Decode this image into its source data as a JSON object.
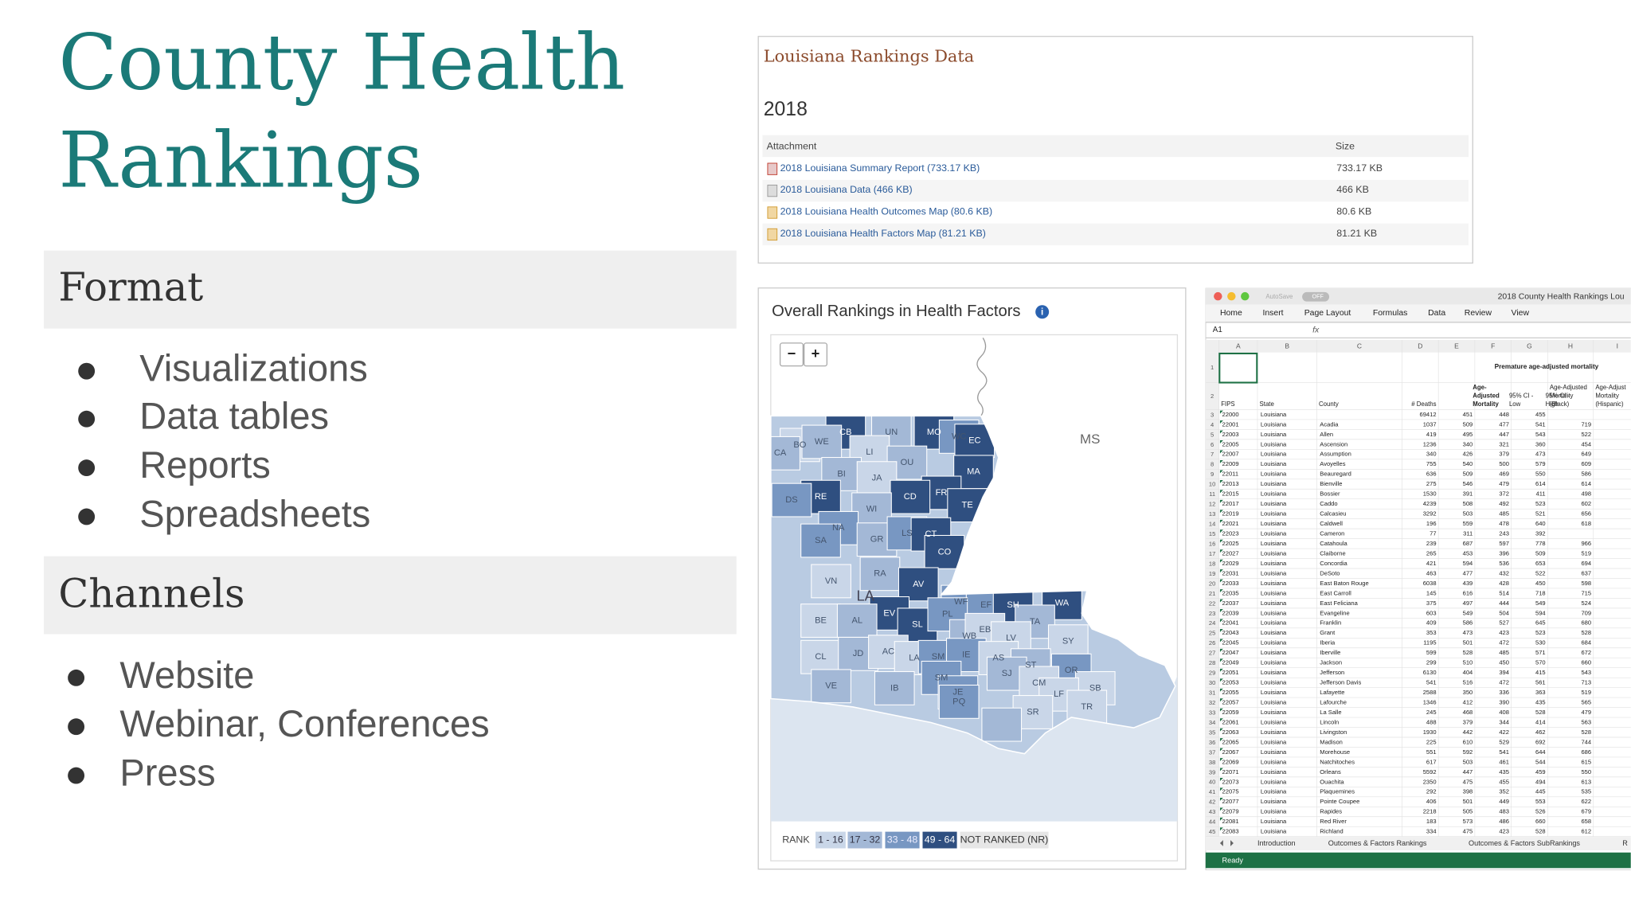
{
  "title_lines": [
    "County Health",
    "Rankings"
  ],
  "sections": [
    {
      "heading": "Format",
      "items": [
        "Visualizations",
        "Data tables",
        "Reports",
        "Spreadsheets"
      ]
    },
    {
      "heading": "Channels",
      "items": [
        "Website",
        "Webinar, Conferences",
        "Press"
      ]
    }
  ],
  "rankings_panel": {
    "heading": "Louisiana Rankings Data",
    "year": "2018",
    "columns": [
      "Attachment",
      "Size"
    ],
    "rows": [
      [
        "2018 Louisiana Summary Report (733.17 KB)",
        "733.17 KB"
      ],
      [
        "2018 Louisiana Data (466 KB)",
        "466 KB"
      ],
      [
        "2018 Louisiana Health Outcomes Map (80.6 KB)",
        "80.6 KB"
      ],
      [
        "2018 Louisiana Health Factors Map (81.21 KB)",
        "81.21 KB"
      ]
    ]
  },
  "map_panel": {
    "title": "Overall Rankings in Health Factors",
    "info_icon": "i",
    "zoom_controls": [
      "−",
      "+"
    ],
    "state_label": "MS",
    "legend_label": "RANK",
    "legend_items": [
      "1 - 16",
      "17 - 32",
      "33 - 48",
      "49 - 64",
      "NOT RANKED (NR)"
    ],
    "parishes": [
      "CB",
      "UN",
      "MO",
      "WC",
      "EC",
      "BO",
      "WE",
      "CA",
      "LI",
      "OU",
      "BI",
      "JA",
      "MA",
      "FR",
      "RE",
      "CD",
      "DS",
      "TE",
      "WI",
      "NA",
      "GR",
      "LS",
      "CT",
      "CO",
      "SA",
      "RA",
      "VN",
      "AV",
      "LA",
      "WF",
      "EF",
      "SH",
      "WA",
      "EV",
      "BE",
      "AL",
      "SL",
      "PL",
      "TA",
      "WB",
      "EB",
      "LV",
      "SY",
      "CL",
      "JD",
      "AC",
      "LA",
      "SM",
      "IE",
      "AS",
      "ST",
      "OR",
      "SJ",
      "SB",
      "CM",
      "VE",
      "IB",
      "SM",
      "JE",
      "LF",
      "SR",
      "PQ",
      "TR"
    ]
  },
  "spreadsheet": {
    "window_title": "2018 County Health Rankings Lou",
    "autosave": "AutoSave",
    "autosave_state": "OFF",
    "tabs": [
      "Home",
      "Insert",
      "Page Layout",
      "Formulas",
      "Data",
      "Review",
      "View"
    ],
    "cell_ref": "A1",
    "formula_icon": "fx",
    "column_letters": [
      "A",
      "B",
      "C",
      "D",
      "E",
      "F",
      "G",
      "H",
      "I"
    ],
    "row_numbers": [
      1,
      2,
      3,
      4,
      5,
      6,
      7,
      8,
      9,
      10,
      11,
      12,
      13,
      14,
      15,
      16,
      17,
      18,
      19,
      20,
      21,
      22,
      23,
      24,
      25,
      26,
      27,
      28,
      29,
      30,
      31,
      32,
      33,
      34,
      35,
      36,
      37,
      38,
      39,
      40,
      41,
      42,
      43,
      44,
      45
    ],
    "group_header": "Premature age-adjusted mortality",
    "header_row": [
      [
        "FIPS"
      ],
      [
        "State"
      ],
      [
        "County"
      ],
      [
        "# Deaths"
      ],
      [
        "Age-",
        "Adjusted",
        "Mortality"
      ],
      [
        "95% CI -",
        "Low"
      ],
      [
        "95% CI -",
        "High"
      ],
      [
        "Age-Adjusted",
        "Mortality",
        "(Black)"
      ],
      [
        "Age-Adjust",
        "Mortality",
        "(Hispanic)"
      ]
    ],
    "rows": [
      [
        "22000",
        "Louisiana",
        null,
        "69412",
        "451",
        "448",
        "455",
        null
      ],
      [
        "22001",
        "Louisiana",
        "Acadia",
        "1037",
        "509",
        "477",
        "541",
        "719"
      ],
      [
        "22003",
        "Louisiana",
        "Allen",
        "419",
        "495",
        "447",
        "543",
        "522"
      ],
      [
        "22005",
        "Louisiana",
        "Ascension",
        "1236",
        "340",
        "321",
        "360",
        "454"
      ],
      [
        "22007",
        "Louisiana",
        "Assumption",
        "340",
        "426",
        "379",
        "473",
        "649"
      ],
      [
        "22009",
        "Louisiana",
        "Avoyelles",
        "755",
        "540",
        "500",
        "579",
        "609"
      ],
      [
        "22011",
        "Louisiana",
        "Beauregard",
        "636",
        "509",
        "469",
        "550",
        "586"
      ],
      [
        "22013",
        "Louisiana",
        "Bienville",
        "275",
        "546",
        "479",
        "614",
        "614"
      ],
      [
        "22015",
        "Louisiana",
        "Bossier",
        "1530",
        "391",
        "372",
        "411",
        "498"
      ],
      [
        "22017",
        "Louisiana",
        "Caddo",
        "4239",
        "508",
        "492",
        "523",
        "602"
      ],
      [
        "22019",
        "Louisiana",
        "Calcasieu",
        "3292",
        "503",
        "485",
        "521",
        "656"
      ],
      [
        "22021",
        "Louisiana",
        "Caldwell",
        "196",
        "559",
        "478",
        "640",
        "618"
      ],
      [
        "22023",
        "Louisiana",
        "Cameron",
        "77",
        "311",
        "243",
        "392",
        null
      ],
      [
        "22025",
        "Louisiana",
        "Catahoula",
        "239",
        "687",
        "597",
        "778",
        "966"
      ],
      [
        "22027",
        "Louisiana",
        "Claiborne",
        "265",
        "453",
        "396",
        "509",
        "519"
      ],
      [
        "22029",
        "Louisiana",
        "Concordia",
        "421",
        "594",
        "536",
        "653",
        "694"
      ],
      [
        "22031",
        "Louisiana",
        "DeSoto",
        "463",
        "477",
        "432",
        "522",
        "637"
      ],
      [
        "22033",
        "Louisiana",
        "East Baton Rouge",
        "6038",
        "439",
        "428",
        "450",
        "598"
      ],
      [
        "22035",
        "Louisiana",
        "East Carroll",
        "145",
        "616",
        "514",
        "718",
        "715"
      ],
      [
        "22037",
        "Louisiana",
        "East Feliciana",
        "375",
        "497",
        "444",
        "549",
        "524"
      ],
      [
        "22039",
        "Louisiana",
        "Evangeline",
        "603",
        "549",
        "504",
        "594",
        "709"
      ],
      [
        "22041",
        "Louisiana",
        "Franklin",
        "409",
        "586",
        "527",
        "645",
        "680"
      ],
      [
        "22043",
        "Louisiana",
        "Grant",
        "353",
        "473",
        "423",
        "523",
        "528"
      ],
      [
        "22045",
        "Louisiana",
        "Iberia",
        "1195",
        "501",
        "472",
        "530",
        "684"
      ],
      [
        "22047",
        "Louisiana",
        "Iberville",
        "599",
        "528",
        "485",
        "571",
        "672"
      ],
      [
        "22049",
        "Louisiana",
        "Jackson",
        "299",
        "510",
        "450",
        "570",
        "660"
      ],
      [
        "22051",
        "Louisiana",
        "Jefferson",
        "6130",
        "404",
        "394",
        "415",
        "543"
      ],
      [
        "22053",
        "Louisiana",
        "Jefferson Davis",
        "541",
        "516",
        "472",
        "561",
        "713"
      ],
      [
        "22055",
        "Louisiana",
        "Lafayette",
        "2588",
        "350",
        "336",
        "363",
        "519"
      ],
      [
        "22057",
        "Louisiana",
        "Lafourche",
        "1346",
        "412",
        "390",
        "435",
        "565"
      ],
      [
        "22059",
        "Louisiana",
        "La Salle",
        "245",
        "468",
        "408",
        "528",
        "479"
      ],
      [
        "22061",
        "Louisiana",
        "Lincoln",
        "488",
        "379",
        "344",
        "414",
        "563"
      ],
      [
        "22063",
        "Louisiana",
        "Livingston",
        "1930",
        "442",
        "422",
        "462",
        "528"
      ],
      [
        "22065",
        "Louisiana",
        "Madison",
        "225",
        "610",
        "529",
        "692",
        "744"
      ],
      [
        "22067",
        "Louisiana",
        "Morehouse",
        "551",
        "592",
        "541",
        "644",
        "686"
      ],
      [
        "22069",
        "Louisiana",
        "Natchitoches",
        "617",
        "503",
        "461",
        "544",
        "615"
      ],
      [
        "22071",
        "Louisiana",
        "Orleans",
        "5592",
        "447",
        "435",
        "459",
        "550"
      ],
      [
        "22073",
        "Louisiana",
        "Ouachita",
        "2350",
        "475",
        "455",
        "494",
        "613"
      ],
      [
        "22075",
        "Louisiana",
        "Plaquemines",
        "292",
        "398",
        "352",
        "445",
        "535"
      ],
      [
        "22077",
        "Louisiana",
        "Pointe Coupee",
        "406",
        "501",
        "449",
        "553",
        "622"
      ],
      [
        "22079",
        "Louisiana",
        "Rapides",
        "2218",
        "505",
        "483",
        "526",
        "679"
      ],
      [
        "22081",
        "Louisiana",
        "Red River",
        "183",
        "573",
        "486",
        "660",
        "658"
      ],
      [
        "22083",
        "Louisiana",
        "Richland",
        "334",
        "475",
        "423",
        "528",
        "612"
      ]
    ],
    "sheet_tabs": [
      "Introduction",
      "Outcomes & Factors Rankings",
      "Outcomes & Factors SubRankings",
      "R"
    ],
    "status": "Ready"
  }
}
